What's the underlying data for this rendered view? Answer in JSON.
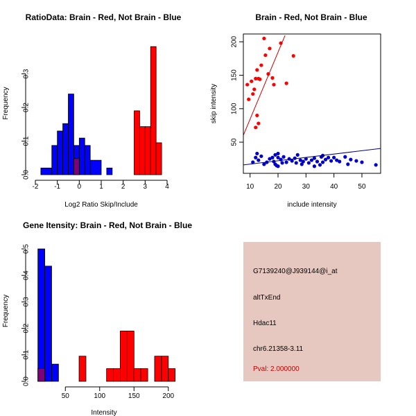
{
  "chart_data": [
    {
      "id": "ratio",
      "type": "histogram",
      "title": "RatioData: Brain - Red, Not Brain - Blue",
      "xlabel": "Log2 Ratio Skip/Include",
      "ylabel": "Frequency",
      "xlim": [
        -2,
        4
      ],
      "ylim": [
        0,
        0.4
      ],
      "xticks": [
        -2,
        -1,
        0,
        1,
        2,
        3,
        4
      ],
      "yticks": [
        0.0,
        0.1,
        0.2,
        0.3
      ],
      "colors": {
        "brain": "#ff0000",
        "not_brain": "#0000ff",
        "overlap": "#7f007f"
      },
      "series": [
        {
          "name": "Not Brain",
          "color": "#0000ff",
          "bins": [
            {
              "x0": -1.75,
              "x1": -1.25,
              "value": 0.02
            },
            {
              "x0": -1.25,
              "x1": -1.0,
              "value": 0.087
            },
            {
              "x0": -1.0,
              "x1": -0.75,
              "value": 0.13
            },
            {
              "x0": -0.75,
              "x1": -0.5,
              "value": 0.152
            },
            {
              "x0": -0.5,
              "x1": -0.25,
              "value": 0.24
            },
            {
              "x0": -0.25,
              "x1": 0.0,
              "value": 0.087
            },
            {
              "x0": 0.0,
              "x1": 0.25,
              "value": 0.109
            },
            {
              "x0": 0.25,
              "x1": 0.5,
              "value": 0.087
            },
            {
              "x0": 0.5,
              "x1": 1.0,
              "value": 0.043
            },
            {
              "x0": 1.25,
              "x1": 1.5,
              "value": 0.02
            }
          ]
        },
        {
          "name": "Brain",
          "color": "#ff0000",
          "bins": [
            {
              "x0": -0.25,
              "x1": 0.0,
              "value": 0.048
            },
            {
              "x0": 2.5,
              "x1": 2.75,
              "value": 0.19
            },
            {
              "x0": 2.75,
              "x1": 3.0,
              "value": 0.143
            },
            {
              "x0": 3.0,
              "x1": 3.25,
              "value": 0.143
            },
            {
              "x0": 3.25,
              "x1": 3.5,
              "value": 0.381
            },
            {
              "x0": 3.5,
              "x1": 3.75,
              "value": 0.095
            }
          ]
        }
      ]
    },
    {
      "id": "scatter",
      "type": "scatter",
      "title": "Brain - Red, Not Brain - Blue",
      "xlabel": "include intensity",
      "ylabel": "skip intensity",
      "xlim": [
        7.6,
        56.7
      ],
      "ylim": [
        3.4,
        211.7
      ],
      "xticks": [
        10,
        20,
        30,
        40,
        50
      ],
      "yticks": [
        50,
        100,
        150,
        200
      ],
      "series": [
        {
          "name": "Brain",
          "color": "#ff0000",
          "points": [
            [
              9,
              136
            ],
            [
              9.5,
              114
            ],
            [
              10.5,
              141
            ],
            [
              11,
              122
            ],
            [
              11.5,
              129
            ],
            [
              12,
              145
            ],
            [
              12.5,
              158
            ],
            [
              13,
              145
            ],
            [
              13.5,
              144
            ],
            [
              14,
              165
            ],
            [
              15,
              205
            ],
            [
              15.5,
              180
            ],
            [
              16.5,
              152
            ],
            [
              17,
              190
            ],
            [
              18,
              146
            ],
            [
              18.5,
              136
            ],
            [
              21,
              198
            ],
            [
              23,
              138
            ],
            [
              25.5,
              179
            ],
            [
              12,
              72
            ],
            [
              12.5,
              90
            ],
            [
              13,
              78
            ]
          ],
          "fit_line": {
            "x0": 7.6,
            "x1": 22.5,
            "slope": 10.0,
            "intercept": -15.6
          }
        },
        {
          "name": "Not Brain",
          "color": "#0000cc",
          "points": [
            [
              11,
              20
            ],
            [
              12,
              27
            ],
            [
              12.5,
              33
            ],
            [
              13,
              23
            ],
            [
              14,
              29
            ],
            [
              15,
              17
            ],
            [
              16,
              20
            ],
            [
              17,
              25
            ],
            [
              18,
              27
            ],
            [
              18.5,
              21
            ],
            [
              19,
              17
            ],
            [
              19,
              31
            ],
            [
              19.5,
              15
            ],
            [
              20,
              33
            ],
            [
              20,
              27
            ],
            [
              21,
              24
            ],
            [
              21.5,
              19
            ],
            [
              22,
              28
            ],
            [
              23,
              20
            ],
            [
              24,
              25
            ],
            [
              25,
              22
            ],
            [
              26,
              26
            ],
            [
              27,
              31
            ],
            [
              28,
              23
            ],
            [
              28.5,
              17
            ],
            [
              29,
              21
            ],
            [
              30,
              25
            ],
            [
              31,
              19
            ],
            [
              32,
              23
            ],
            [
              33,
              26
            ],
            [
              34,
              21
            ],
            [
              35,
              16
            ],
            [
              35.5,
              28
            ],
            [
              36,
              30
            ],
            [
              37,
              24
            ],
            [
              38,
              27
            ],
            [
              39,
              22
            ],
            [
              40,
              27
            ],
            [
              41,
              23
            ],
            [
              42,
              21
            ],
            [
              44,
              28
            ],
            [
              45,
              17
            ],
            [
              46,
              24
            ],
            [
              48,
              22
            ],
            [
              50,
              20
            ],
            [
              55,
              16
            ],
            [
              20,
              14
            ],
            [
              26.5,
              19
            ],
            [
              33,
              14
            ],
            [
              36,
              20
            ]
          ],
          "fit_line": {
            "x0": 7.6,
            "x1": 56.7,
            "slope": 0.5,
            "intercept": 12.2
          }
        }
      ]
    },
    {
      "id": "intensity",
      "type": "histogram",
      "title": "Gene Itensity: Brain - Red, Not Brain - Blue",
      "xlabel": "Intensity",
      "ylabel": "Frequency",
      "xlim": [
        6.3,
        206.3
      ],
      "ylim": [
        0,
        0.5
      ],
      "xticks": [
        50,
        100,
        150,
        200
      ],
      "yticks": [
        0.0,
        0.1,
        0.2,
        0.3,
        0.4,
        0.5
      ],
      "colors": {
        "brain": "#ff0000",
        "not_brain": "#0000ff",
        "overlap": "#7f007f"
      },
      "series": [
        {
          "name": "Not Brain",
          "color": "#0000ff",
          "bins": [
            {
              "x0": 10,
              "x1": 20,
              "value": 0.5
            },
            {
              "x0": 20,
              "x1": 30,
              "value": 0.435
            },
            {
              "x0": 30,
              "x1": 40,
              "value": 0.065
            }
          ]
        },
        {
          "name": "Brain",
          "color": "#ff0000",
          "bins": [
            {
              "x0": 10,
              "x1": 20,
              "value": 0.048
            },
            {
              "x0": 70,
              "x1": 80,
              "value": 0.095
            },
            {
              "x0": 110,
              "x1": 120,
              "value": 0.048
            },
            {
              "x0": 120,
              "x1": 130,
              "value": 0.048
            },
            {
              "x0": 130,
              "x1": 140,
              "value": 0.19
            },
            {
              "x0": 140,
              "x1": 150,
              "value": 0.19
            },
            {
              "x0": 150,
              "x1": 160,
              "value": 0.048
            },
            {
              "x0": 160,
              "x1": 170,
              "value": 0.048
            },
            {
              "x0": 180,
              "x1": 190,
              "value": 0.095
            },
            {
              "x0": 190,
              "x1": 200,
              "value": 0.095
            },
            {
              "x0": 200,
              "x1": 210,
              "value": 0.048
            }
          ]
        }
      ]
    }
  ],
  "info_panel": {
    "probe_id": "G7139240@J939144@i_at",
    "event_type": "altTxEnd",
    "gene": "Hdac11",
    "location": "chr6.21358-3.11",
    "pval": "Pval: 2.000000",
    "background": "#e6c8c0",
    "pval_color": "#c00000"
  }
}
